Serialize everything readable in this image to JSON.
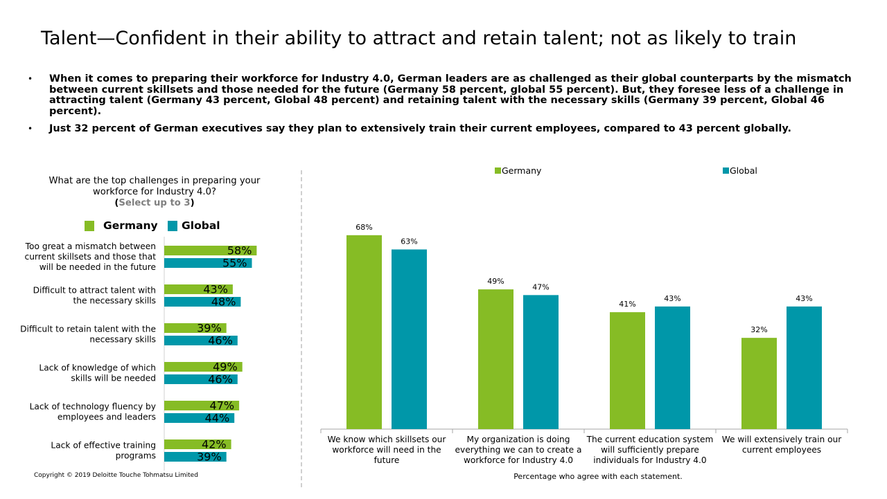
{
  "title": "Talent—Confident in their ability to attract and retain talent; not as likely to train",
  "bullets": [
    "When it comes to preparing their workforce for Industry 4.0, German leaders are as challenged as their global counterparts by the mismatch between current skillsets and those needed for the future (Germany 58 percent, global 55 percent). But, they foresee less of a challenge in attracting talent (Germany 43 percent, Global 48 percent) and retaining talent with the necessary skills (Germany 39 percent, Global 46 percent).",
    "Just 32 percent of German executives say they plan to extensively train their current employees, compared to 43 percent globally."
  ],
  "bullet_glyph": "•",
  "left_question": {
    "line1": "What are the top challenges in preparing your",
    "line2": "workforce for Industry 4.0?",
    "open": "(",
    "select": "Select up to 3",
    "close": ")"
  },
  "copyright": "Copyright © 2019 Deloitte Touche Tohmatsu Limited",
  "colors": {
    "germany": "#86bc25",
    "global": "#0097a9"
  },
  "chart_data": [
    {
      "type": "bar",
      "orientation": "horizontal",
      "categories": [
        [
          "Too great a mismatch between",
          "current skillsets and those that",
          "will be needed in the future"
        ],
        [
          "Difficult to attract talent with",
          "the necessary skills"
        ],
        [
          "Difficult to retain talent with the",
          "necessary skills"
        ],
        [
          "Lack of knowledge of which",
          "skills will be needed"
        ],
        [
          "Lack of technology fluency by",
          "employees and leaders"
        ],
        [
          "Lack of effective training",
          "programs"
        ]
      ],
      "series": [
        {
          "name": "Germany",
          "values": [
            58,
            43,
            39,
            49,
            47,
            42
          ],
          "labels": [
            "58%",
            "43%",
            "39%",
            "49%",
            "47%",
            "42%"
          ]
        },
        {
          "name": "Global",
          "values": [
            55,
            48,
            46,
            46,
            44,
            39
          ],
          "labels": [
            "55%",
            "48%",
            "46%",
            "46%",
            "44%",
            "39%"
          ]
        }
      ],
      "legend": "top"
    },
    {
      "type": "bar",
      "orientation": "vertical",
      "categories": [
        [
          "We know which skillsets our",
          "workforce will need in the",
          "future"
        ],
        [
          "My organization is doing",
          "everything we can to create a",
          "workforce for Industry 4.0"
        ],
        [
          "The current education system",
          "will sufficiently prepare",
          "individuals for Industry 4.0"
        ],
        [
          "We will extensively train our",
          "current employees"
        ]
      ],
      "series": [
        {
          "name": "Germany",
          "values": [
            68,
            49,
            41,
            32
          ],
          "labels": [
            "68%",
            "49%",
            "41%",
            "32%"
          ]
        },
        {
          "name": "Global",
          "values": [
            63,
            47,
            43,
            43
          ],
          "labels": [
            "63%",
            "47%",
            "43%",
            "43%"
          ]
        }
      ],
      "xlabel": "Percentage who agree with each statement.",
      "ylim": [
        0,
        70
      ],
      "grid": false,
      "legend": "top"
    }
  ]
}
